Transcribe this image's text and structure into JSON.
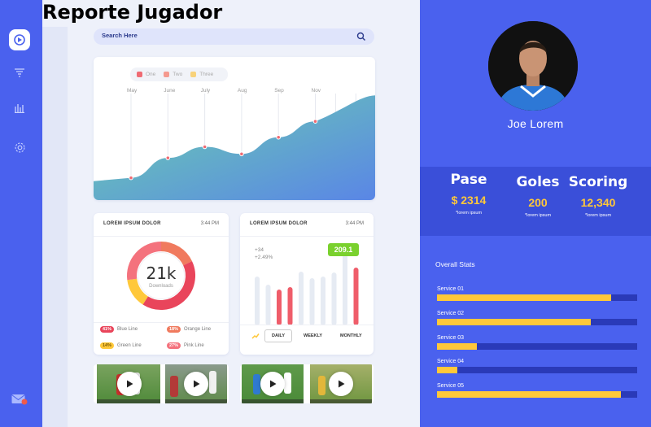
{
  "page": {
    "title": "Reporte Jugador"
  },
  "sidebar": {
    "items": [
      {
        "name": "dashboard",
        "icon": "dashboard-icon",
        "active": true
      },
      {
        "name": "filter",
        "icon": "filter-icon"
      },
      {
        "name": "stats",
        "icon": "bar-chart-icon"
      },
      {
        "name": "settings",
        "icon": "gear-icon"
      }
    ],
    "bottom_icon": "mail-notification-icon"
  },
  "search": {
    "placeholder": "Search Here",
    "icon": "search-icon"
  },
  "main_chart": {
    "legend": [
      {
        "label": "One",
        "color": "#ef6b73"
      },
      {
        "label": "Two",
        "color": "#f59a8f"
      },
      {
        "label": "Three",
        "color": "#f8d27a"
      }
    ]
  },
  "chart_data": {
    "type": "area",
    "categories": [
      "May",
      "June",
      "July",
      "Aug",
      "Sep",
      "Nov"
    ],
    "values": [
      28,
      53,
      67,
      58,
      79,
      99
    ],
    "title": "",
    "xlabel": "",
    "ylabel": "",
    "ylim": [
      0,
      180
    ],
    "grid": false,
    "legend_position": "top-left",
    "gradient_colors": [
      "#62c8a8",
      "#5b8de8"
    ]
  },
  "donut_card": {
    "title": "LOREM IPSUM DOLOR",
    "time": "3:44 PM",
    "value": "21k",
    "value_label": "Downloads",
    "segments": [
      {
        "name": "Orange Line",
        "percent": 18,
        "color": "#f07a5e"
      },
      {
        "name": "Blue Line",
        "percent": 41,
        "color": "#e9455b"
      },
      {
        "name": "Green Line",
        "percent": 14,
        "color": "#ffc83a"
      },
      {
        "name": "Pink Line",
        "percent": 27,
        "color": "#f4727d"
      }
    ],
    "legend": [
      {
        "pct": "41%",
        "label": "Blue Line",
        "color": "#e9455b"
      },
      {
        "pct": "18%",
        "label": "Orange Line",
        "color": "#f07a5e"
      },
      {
        "pct": "14%",
        "label": "Green Line",
        "color": "#ffc83a"
      },
      {
        "pct": "27%",
        "label": "Pink Line",
        "color": "#f4727d"
      }
    ]
  },
  "bar_card": {
    "title": "LOREM IPSUM DOLOR",
    "time": "3:44 PM",
    "info_line1": "+34",
    "info_line2": "+2.49%",
    "badge": "209.1",
    "bars": [
      {
        "value": 60,
        "highlight": false
      },
      {
        "value": 50,
        "highlight": false
      },
      {
        "value": 44,
        "highlight": true
      },
      {
        "value": 47,
        "highlight": true
      },
      {
        "value": 66,
        "highlight": false
      },
      {
        "value": 58,
        "highlight": false
      },
      {
        "value": 60,
        "highlight": false
      },
      {
        "value": 65,
        "highlight": false
      },
      {
        "value": 96,
        "highlight": false
      },
      {
        "value": 71,
        "highlight": true
      }
    ],
    "tabs": [
      {
        "label": "DAILY",
        "active": true
      },
      {
        "label": "WEEKLY",
        "active": false
      },
      {
        "label": "MONTHLY",
        "active": false
      }
    ]
  },
  "videos": [
    {
      "name": "video-1"
    },
    {
      "name": "video-2"
    },
    {
      "name": "video-3"
    },
    {
      "name": "video-4"
    }
  ],
  "player": {
    "name": "Joe Lorem",
    "stats": [
      {
        "label": "Pase",
        "value": "$ 2314",
        "sub": "*lorem ipsum"
      },
      {
        "label": "Goles",
        "value": "200",
        "sub": "*lorem ipsum"
      },
      {
        "label": "Scoring",
        "value": "12,340",
        "sub": "*lorem ipsum"
      }
    ]
  },
  "overall": {
    "title": "Overall Stats",
    "services": [
      {
        "label": "Service  01",
        "fraction": 0.87
      },
      {
        "label": "Service  02",
        "fraction": 0.77
      },
      {
        "label": "Service  03",
        "fraction": 0.2
      },
      {
        "label": "Service  04",
        "fraction": 0.1
      },
      {
        "label": "Service  05",
        "fraction": 0.92
      }
    ]
  }
}
